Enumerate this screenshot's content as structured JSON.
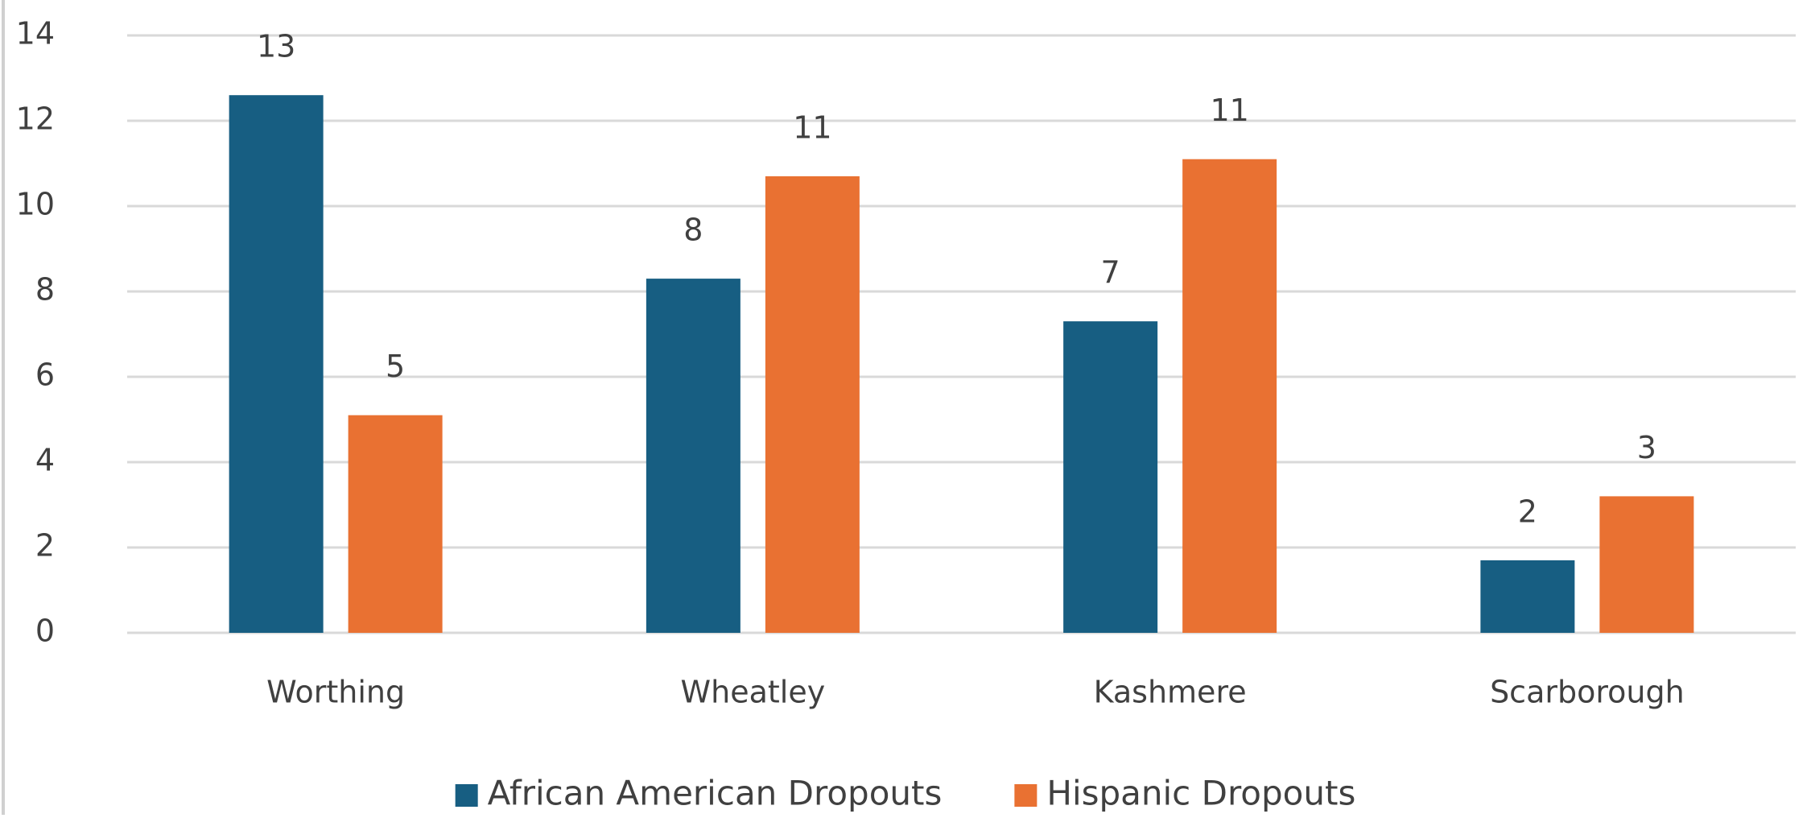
{
  "chart_data": {
    "type": "bar",
    "categories": [
      "Worthing",
      "Wheatley",
      "Kashmere",
      "Scarborough"
    ],
    "series": [
      {
        "name": "African American Dropouts",
        "color": "#175e82",
        "values": [
          12.6,
          8.3,
          7.3,
          1.7
        ],
        "value_labels": [
          "13",
          "8",
          "7",
          "2"
        ]
      },
      {
        "name": "Hispanic Dropouts",
        "color": "#e97132",
        "values": [
          5.1,
          10.7,
          11.1,
          3.2
        ],
        "value_labels": [
          "5",
          "11",
          "11",
          "3"
        ]
      }
    ],
    "ylim": [
      0,
      14
    ],
    "yticks": [
      0,
      2,
      4,
      6,
      8,
      10,
      12,
      14
    ],
    "grid": true,
    "legend": "bottom"
  }
}
